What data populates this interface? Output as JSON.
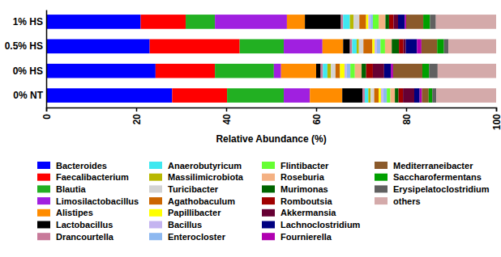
{
  "chart_data": {
    "type": "bar",
    "orientation": "horizontal",
    "stacked": true,
    "x_label": "Relative Abundance (%)",
    "categories": [
      "1% HS",
      "0.5% HS",
      "0% HS",
      "0% NT"
    ],
    "xlim": [
      0,
      100
    ],
    "xticks": [
      0,
      20,
      40,
      60,
      80,
      100
    ],
    "legend": "bottom",
    "series": [
      {
        "name": "Bacteroides",
        "color": "#0000ff",
        "values": [
          21,
          23,
          24.3,
          28
        ]
      },
      {
        "name": "Faecalibacterium",
        "color": "#ff0000",
        "values": [
          10,
          20,
          13.2,
          12.2
        ]
      },
      {
        "name": "Blautia",
        "color": "#22b022",
        "values": [
          6.5,
          9.8,
          13.1,
          12.6
        ]
      },
      {
        "name": "Limosilactobacillus",
        "color": "#a020e0",
        "values": [
          16,
          8.6,
          1.6,
          5.8
        ]
      },
      {
        "name": "Alistipes",
        "color": "#ff8c00",
        "values": [
          4,
          4.6,
          7.8,
          7.2
        ]
      },
      {
        "name": "Lactobacillus",
        "color": "#000000",
        "values": [
          8,
          1.5,
          1,
          4.5
        ]
      },
      {
        "name": "Drancourtella",
        "color": "#c87a9a",
        "values": [
          0.5,
          0.5,
          0.5,
          0.5
        ]
      },
      {
        "name": "Anaerobutyricum",
        "color": "#40e8f0",
        "values": [
          1.5,
          1,
          1,
          0.8
        ]
      },
      {
        "name": "Massilimicrobiota",
        "color": "#b8b800",
        "values": [
          0.8,
          0.5,
          0.8,
          0.5
        ]
      },
      {
        "name": "Turicibacter",
        "color": "#d3d3d3",
        "values": [
          1.3,
          1,
          1,
          0.8
        ]
      },
      {
        "name": "Agathobaculum",
        "color": "#cc6600",
        "values": [
          1.5,
          2,
          1,
          1
        ]
      },
      {
        "name": "Papillibacter",
        "color": "#ffff00",
        "values": [
          0.5,
          0.5,
          1,
          0.5
        ]
      },
      {
        "name": "Bacillus",
        "color": "#c4b4f0",
        "values": [
          0.5,
          0.5,
          0.5,
          0.5
        ]
      },
      {
        "name": "Enterocloster",
        "color": "#8db8f0",
        "values": [
          0.5,
          0.8,
          0.8,
          0.8
        ]
      },
      {
        "name": "Flintibacter",
        "color": "#66ff33",
        "values": [
          1.3,
          1,
          1,
          0.8
        ]
      },
      {
        "name": "Roseburia",
        "color": "#f4b183",
        "values": [
          1.5,
          1.5,
          1.5,
          1
        ]
      },
      {
        "name": "Murimonas",
        "color": "#006400",
        "values": [
          0.8,
          1.6,
          1,
          0.8
        ]
      },
      {
        "name": "Romboutsia",
        "color": "#a00000",
        "values": [
          1,
          1,
          1.5,
          1
        ]
      },
      {
        "name": "Akkermansia",
        "color": "#660033",
        "values": [
          1,
          0.5,
          2.5,
          2.5
        ]
      },
      {
        "name": "Lachnoclostridium",
        "color": "#000080",
        "values": [
          1.5,
          2.5,
          1.5,
          1.2
        ]
      },
      {
        "name": "Fournierella",
        "color": "#b000b0",
        "values": [
          0.3,
          1,
          0.5,
          0.5
        ]
      },
      {
        "name": "Mediterraneibacter",
        "color": "#8b5a2b",
        "values": [
          3.8,
          3.5,
          6.5,
          1.5
        ]
      },
      {
        "name": "Saccharofermentans",
        "color": "#00a000",
        "values": [
          1.5,
          1.5,
          1.5,
          0.8
        ]
      },
      {
        "name": "Erysipelatoclostridium",
        "color": "#606060",
        "values": [
          1.3,
          1,
          1.9,
          0.9
        ]
      },
      {
        "name": "others",
        "color": "#d4aaaa",
        "values": [
          13.4,
          10.6,
          13,
          13.3
        ]
      }
    ]
  }
}
